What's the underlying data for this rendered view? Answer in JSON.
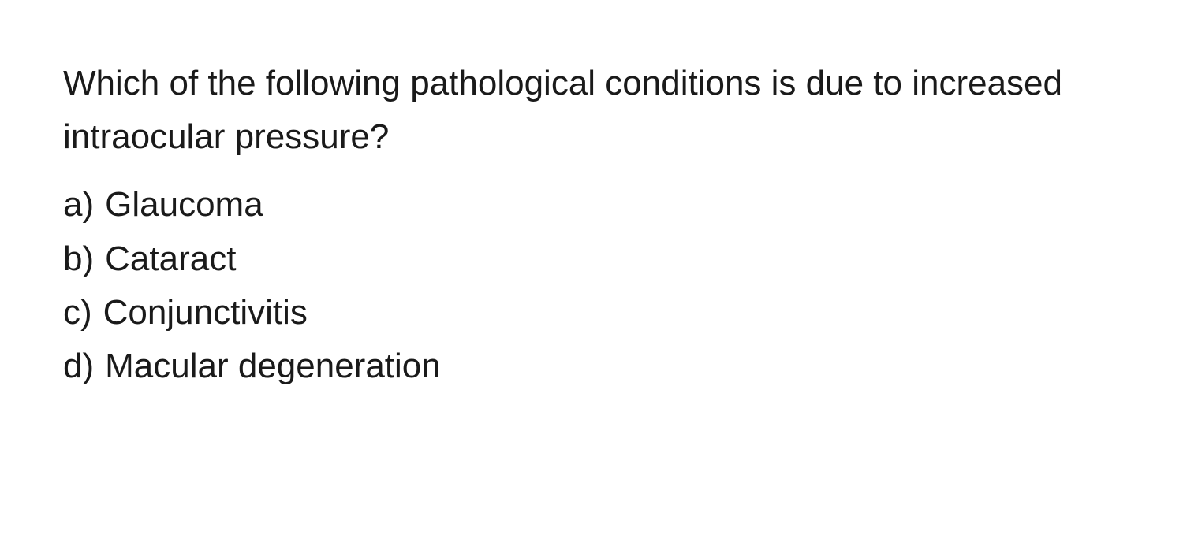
{
  "question": {
    "text": "Which of the following pathological conditions is due to increased intraocular pressure?",
    "options": [
      {
        "label": "a)",
        "text": "Glaucoma"
      },
      {
        "label": "b)",
        "text": "Cataract"
      },
      {
        "label": "c)",
        "text": "Conjunctivitis"
      },
      {
        "label": "d)",
        "text": "Macular degeneration"
      }
    ]
  },
  "styling": {
    "background_color": "#ffffff",
    "text_color": "#1a1a1a",
    "font_size_pt": 33,
    "font_family": "system-ui",
    "line_height": 1.55
  }
}
